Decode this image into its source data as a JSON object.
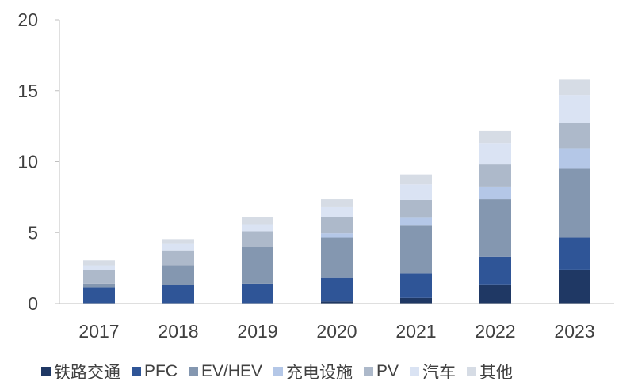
{
  "chart_data": {
    "type": "bar",
    "stacked": true,
    "categories": [
      "2017",
      "2018",
      "2019",
      "2020",
      "2021",
      "2022",
      "2023"
    ],
    "ylim": [
      0,
      20
    ],
    "yticks": [
      0,
      5,
      10,
      15,
      20
    ],
    "grid": false,
    "legend_position": "bottom",
    "series": [
      {
        "name": "铁路交通",
        "color": "#1f3864",
        "values": [
          0,
          0,
          0,
          0.15,
          0.4,
          1.35,
          2.4
        ]
      },
      {
        "name": "PFC",
        "color": "#2f5597",
        "values": [
          1.15,
          1.3,
          1.4,
          1.65,
          1.75,
          1.95,
          2.25
        ]
      },
      {
        "name": "EV/HEV",
        "color": "#8497b0",
        "values": [
          0.25,
          1.4,
          2.6,
          2.85,
          3.35,
          4.05,
          4.85
        ]
      },
      {
        "name": "充电设施",
        "color": "#b4c7e7",
        "values": [
          0,
          0,
          0,
          0.3,
          0.55,
          0.9,
          1.45
        ]
      },
      {
        "name": "PV",
        "color": "#adb9ca",
        "values": [
          0.95,
          1.05,
          1.1,
          1.15,
          1.25,
          1.55,
          1.8
        ]
      },
      {
        "name": "汽车",
        "color": "#dae3f3",
        "values": [
          0.35,
          0.45,
          0.5,
          0.7,
          1.1,
          1.5,
          1.95
        ]
      },
      {
        "name": "其他",
        "color": "#d6dce5",
        "values": [
          0.35,
          0.35,
          0.5,
          0.55,
          0.7,
          0.85,
          1.1
        ]
      }
    ]
  }
}
